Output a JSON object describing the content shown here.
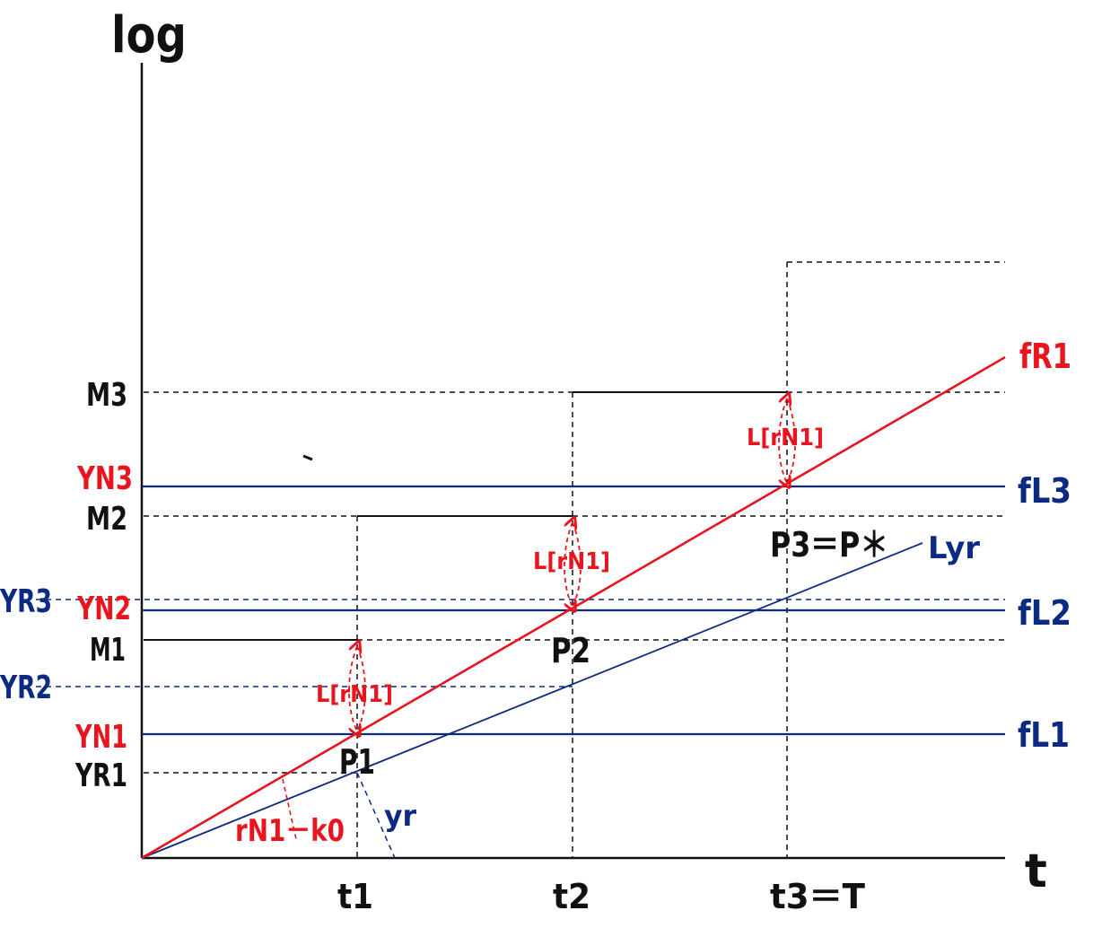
{
  "axes": {
    "y_label": "log",
    "x_label": "t",
    "x_ticks": [
      "t1",
      "t2",
      "t3＝T"
    ]
  },
  "levels": {
    "M3": "M3",
    "YN3": "YN3",
    "M2": "M2",
    "YR3": "YR3",
    "YN2": "YN2",
    "M1": "M1",
    "YR2": "YR2",
    "YN1": "YN1",
    "YR1": "YR1"
  },
  "lines": {
    "fR1": "fR1",
    "fL3": "fL3",
    "fL2": "fL2",
    "fL1": "fL1",
    "Lyr": "Lyr",
    "yr": "yr",
    "slope": "rN1－k0"
  },
  "points": {
    "P1": "P1",
    "P2": "P2",
    "P3": "P3＝P＊"
  },
  "gap_label": "L[rN1]",
  "colors": {
    "red": "#e8141e",
    "blue": "#0c2a82",
    "black": "#111111"
  }
}
